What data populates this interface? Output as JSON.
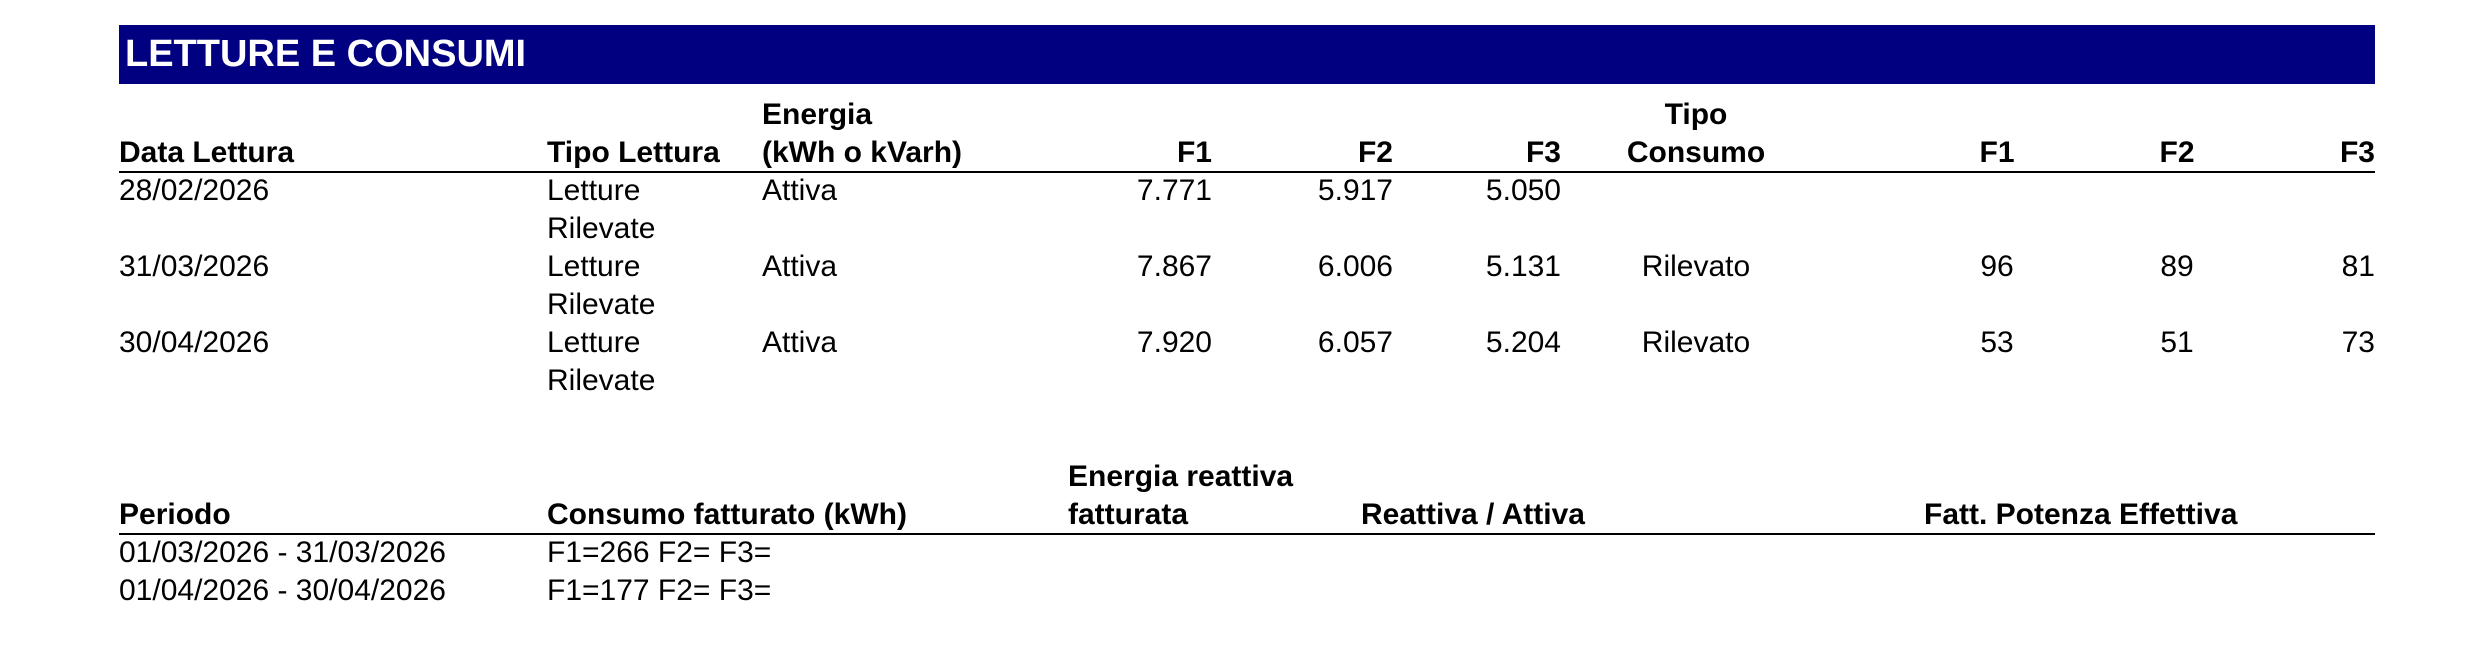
{
  "header": {
    "title": "LETTURE E CONSUMI"
  },
  "readings": {
    "headers": {
      "date": [
        "Data Lettura"
      ],
      "type": [
        "Tipo Lettura"
      ],
      "energy": [
        "Energia",
        "(kWh o kVarh)"
      ],
      "f1": [
        "F1"
      ],
      "f2": [
        "F2"
      ],
      "f3": [
        "F3"
      ],
      "consumption_type": [
        "Tipo",
        "Consumo"
      ],
      "c1": [
        "F1"
      ],
      "c2": [
        "F2"
      ],
      "c3": [
        "F3"
      ]
    },
    "rows": [
      {
        "date": [
          "28/02/2026"
        ],
        "type": [
          "Letture",
          "Rilevate"
        ],
        "energy": [
          "Attiva"
        ],
        "f1": [
          "7.771"
        ],
        "f2": [
          "5.917"
        ],
        "f3": [
          "5.050"
        ]
      },
      {
        "date": [
          "31/03/2026"
        ],
        "type": [
          "Letture",
          "Rilevate"
        ],
        "energy": [
          "Attiva"
        ],
        "f1": [
          "7.867"
        ],
        "f2": [
          "6.006"
        ],
        "f3": [
          "5.131"
        ],
        "consumption_type": [
          "Rilevato"
        ],
        "c1": [
          "96"
        ],
        "c2": [
          "89"
        ],
        "c3": [
          "81"
        ]
      },
      {
        "date": [
          "30/04/2026"
        ],
        "type": [
          "Letture",
          "Rilevate"
        ],
        "energy": [
          "Attiva"
        ],
        "f1": [
          "7.920"
        ],
        "f2": [
          "6.057"
        ],
        "f3": [
          "5.204"
        ],
        "consumption_type": [
          "Rilevato"
        ],
        "c1": [
          "53"
        ],
        "c2": [
          "51"
        ],
        "c3": [
          "73"
        ]
      }
    ]
  },
  "billing": {
    "headers": {
      "period": [
        "Periodo"
      ],
      "billed": [
        "Consumo fatturato (kWh)"
      ],
      "reactive": [
        "Energia reattiva",
        "fatturata"
      ],
      "ratio": [
        "Reattiva / Attiva"
      ],
      "power_factor": [
        "Fatt. Potenza Effettiva"
      ]
    },
    "rows": [
      {
        "period": [
          "01/03/2026 - 31/03/2026"
        ],
        "billed": [
          "F1=266 F2= F3="
        ]
      },
      {
        "period": [
          "01/04/2026 - 30/04/2026"
        ],
        "billed": [
          "F1=177 F2= F3="
        ]
      }
    ]
  }
}
